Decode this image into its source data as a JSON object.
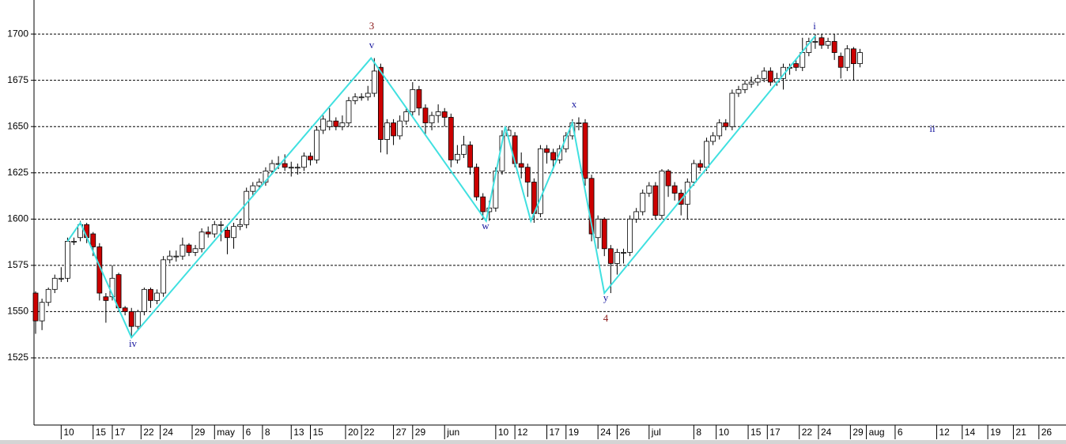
{
  "chart_data": {
    "type": "candlestick",
    "open": [
      1560,
      1545,
      1555,
      1562,
      1568,
      1568,
      1588,
      1590,
      1597,
      1592,
      1585,
      1558,
      1558,
      1570,
      1552,
      1550,
      1542,
      1550,
      1562,
      1556,
      1560,
      1578,
      1580,
      1580,
      1586,
      1582,
      1584,
      1593,
      1592,
      1597,
      1594,
      1590,
      1596,
      1597,
      1615,
      1618,
      1620,
      1626,
      1630,
      1630,
      1628,
      1628,
      1628,
      1634,
      1632,
      1648,
      1650,
      1653,
      1650,
      1652,
      1664,
      1666,
      1666,
      1668,
      1682,
      1643,
      1652,
      1645,
      1653,
      1658,
      1670,
      1660,
      1652,
      1656,
      1658,
      1655,
      1632,
      1635,
      1640,
      1628,
      1612,
      1604,
      1606,
      1626,
      1645,
      1645,
      1630,
      1628,
      1620,
      1603,
      1638,
      1636,
      1632,
      1638,
      1645,
      1652,
      1652,
      1622,
      1590,
      1600,
      1584,
      1576,
      1582,
      1582,
      1600,
      1604,
      1614,
      1618,
      1602,
      1626,
      1618,
      1614,
      1608,
      1620,
      1630,
      1628,
      1642,
      1645,
      1652,
      1650,
      1668,
      1670,
      1673,
      1674,
      1676,
      1680,
      1674,
      1676,
      1682,
      1684,
      1682,
      1690,
      1696,
      1698,
      1694,
      1696,
      1688,
      1682,
      1692,
      1684
    ],
    "high": [
      1561,
      1557,
      1563,
      1570,
      1574,
      1590,
      1590,
      1599,
      1598,
      1593,
      1587,
      1560,
      1575,
      1571,
      1553,
      1552,
      1551,
      1563,
      1563,
      1562,
      1580,
      1583,
      1583,
      1590,
      1587,
      1586,
      1595,
      1596,
      1599,
      1599,
      1596,
      1598,
      1600,
      1617,
      1620,
      1622,
      1628,
      1632,
      1634,
      1635,
      1631,
      1630,
      1636,
      1636,
      1650,
      1656,
      1660,
      1655,
      1656,
      1666,
      1668,
      1668,
      1672,
      1687,
      1684,
      1654,
      1654,
      1656,
      1660,
      1674,
      1672,
      1662,
      1658,
      1662,
      1660,
      1657,
      1640,
      1645,
      1642,
      1630,
      1614,
      1610,
      1628,
      1648,
      1650,
      1647,
      1636,
      1630,
      1622,
      1640,
      1640,
      1638,
      1640,
      1647,
      1654,
      1655,
      1654,
      1624,
      1602,
      1601,
      1586,
      1584,
      1584,
      1602,
      1606,
      1616,
      1620,
      1620,
      1627,
      1627,
      1620,
      1616,
      1622,
      1632,
      1632,
      1644,
      1647,
      1654,
      1654,
      1670,
      1672,
      1675,
      1677,
      1678,
      1682,
      1682,
      1679,
      1684,
      1684,
      1686,
      1698,
      1698,
      1700,
      1700,
      1698,
      1700,
      1690,
      1694,
      1693,
      1692
    ],
    "low": [
      1538,
      1540,
      1553,
      1560,
      1566,
      1566,
      1586,
      1588,
      1587,
      1580,
      1556,
      1544,
      1556,
      1550,
      1548,
      1536,
      1540,
      1548,
      1552,
      1554,
      1558,
      1576,
      1577,
      1578,
      1580,
      1580,
      1582,
      1590,
      1590,
      1588,
      1581,
      1584,
      1594,
      1595,
      1612,
      1616,
      1618,
      1624,
      1627,
      1626,
      1623,
      1624,
      1626,
      1629,
      1630,
      1646,
      1648,
      1648,
      1648,
      1650,
      1662,
      1664,
      1664,
      1666,
      1636,
      1635,
      1640,
      1643,
      1651,
      1656,
      1656,
      1646,
      1648,
      1652,
      1650,
      1628,
      1630,
      1633,
      1624,
      1610,
      1600,
      1599,
      1604,
      1624,
      1643,
      1628,
      1622,
      1612,
      1598,
      1601,
      1630,
      1628,
      1630,
      1636,
      1643,
      1648,
      1618,
      1588,
      1584,
      1580,
      1560,
      1570,
      1576,
      1580,
      1598,
      1602,
      1612,
      1600,
      1600,
      1612,
      1610,
      1602,
      1600,
      1618,
      1626,
      1626,
      1640,
      1643,
      1648,
      1648,
      1666,
      1668,
      1671,
      1672,
      1674,
      1672,
      1672,
      1670,
      1678,
      1680,
      1680,
      1688,
      1692,
      1692,
      1692,
      1686,
      1676,
      1680,
      1675,
      1682
    ],
    "close": [
      1545,
      1555,
      1562,
      1568,
      1568,
      1588,
      1588,
      1597,
      1590,
      1585,
      1560,
      1556,
      1568,
      1552,
      1550,
      1542,
      1550,
      1562,
      1556,
      1560,
      1578,
      1580,
      1580,
      1586,
      1582,
      1584,
      1593,
      1592,
      1597,
      1597,
      1590,
      1596,
      1597,
      1615,
      1618,
      1620,
      1626,
      1630,
      1630,
      1628,
      1628,
      1628,
      1634,
      1632,
      1648,
      1654,
      1653,
      1650,
      1652,
      1664,
      1666,
      1666,
      1668,
      1680,
      1643,
      1652,
      1645,
      1653,
      1658,
      1670,
      1660,
      1652,
      1656,
      1658,
      1655,
      1632,
      1635,
      1640,
      1628,
      1612,
      1604,
      1606,
      1626,
      1645,
      1648,
      1630,
      1628,
      1620,
      1603,
      1638,
      1636,
      1632,
      1638,
      1645,
      1652,
      1652,
      1622,
      1592,
      1600,
      1584,
      1576,
      1582,
      1582,
      1600,
      1604,
      1614,
      1618,
      1602,
      1626,
      1618,
      1614,
      1608,
      1620,
      1630,
      1628,
      1642,
      1645,
      1652,
      1650,
      1668,
      1670,
      1673,
      1674,
      1676,
      1680,
      1674,
      1676,
      1682,
      1682,
      1682,
      1690,
      1696,
      1696,
      1694,
      1696,
      1690,
      1682,
      1692,
      1684,
      1690
    ],
    "up_color": "#ffffff",
    "down_color": "#cc0000",
    "wave_line": {
      "color": "#40e0e0",
      "x": [
        5,
        7,
        15,
        52.5,
        70.5,
        73.5,
        77.5,
        84,
        89,
        122
      ],
      "values": [
        1588,
        1598,
        1536,
        1687,
        1599,
        1650,
        1599,
        1652,
        1560,
        1699
      ]
    },
    "annotations": [
      {
        "text": "3",
        "color": "#8b1a1a"
      },
      {
        "text": "v",
        "color": "#1a1aa0"
      },
      {
        "text": "iv",
        "color": "#1a1aa0"
      },
      {
        "text": "w",
        "color": "#1a1aa0"
      },
      {
        "text": "x",
        "color": "#1a1aa0"
      },
      {
        "text": "y",
        "color": "#1a1aa0"
      },
      {
        "text": "4",
        "color": "#8b1a1a"
      },
      {
        "text": "i",
        "color": "#1a1aa0"
      },
      {
        "text": "ii",
        "color": "#1a1aa0"
      }
    ],
    "xlim": [
      -0.25,
      160
    ],
    "xticks": [
      {
        "value": 4,
        "label": "10"
      },
      {
        "value": 9,
        "label": "15"
      },
      {
        "value": 12,
        "label": "17"
      },
      {
        "value": 16.5,
        "label": "22"
      },
      {
        "value": 19.5,
        "label": "24"
      },
      {
        "value": 24.5,
        "label": "29"
      },
      {
        "value": 28,
        "label": "may"
      },
      {
        "value": 32.5,
        "label": "6"
      },
      {
        "value": 35.5,
        "label": "8"
      },
      {
        "value": 40,
        "label": "13"
      },
      {
        "value": 43,
        "label": "15"
      },
      {
        "value": 48.5,
        "label": "20"
      },
      {
        "value": 51,
        "label": "22"
      },
      {
        "value": 56,
        "label": "27"
      },
      {
        "value": 59,
        "label": "29"
      },
      {
        "value": 64,
        "label": "jun"
      },
      {
        "value": 72,
        "label": "10"
      },
      {
        "value": 75,
        "label": "12"
      },
      {
        "value": 80,
        "label": "17"
      },
      {
        "value": 83,
        "label": "19"
      },
      {
        "value": 88,
        "label": "24"
      },
      {
        "value": 91,
        "label": "26"
      },
      {
        "value": 96,
        "label": "jul"
      },
      {
        "value": 103,
        "label": "8"
      },
      {
        "value": 106.5,
        "label": "10"
      },
      {
        "value": 111.5,
        "label": "15"
      },
      {
        "value": 114.5,
        "label": "17"
      },
      {
        "value": 119.5,
        "label": "22"
      },
      {
        "value": 122.5,
        "label": "24"
      },
      {
        "value": 127.5,
        "label": "29"
      },
      {
        "value": 130,
        "label": "aug"
      },
      {
        "value": 134.5,
        "label": "6"
      },
      {
        "value": 141,
        "label": "12"
      },
      {
        "value": 145,
        "label": "14"
      },
      {
        "value": 149,
        "label": "19"
      },
      {
        "value": 153,
        "label": "21"
      },
      {
        "value": 157,
        "label": "26"
      }
    ],
    "ylim": [
      1488.7,
      1718.4
    ],
    "yticks": [
      1525,
      1550,
      1575,
      1600,
      1625,
      1650,
      1675,
      1700
    ],
    "grid": true
  }
}
